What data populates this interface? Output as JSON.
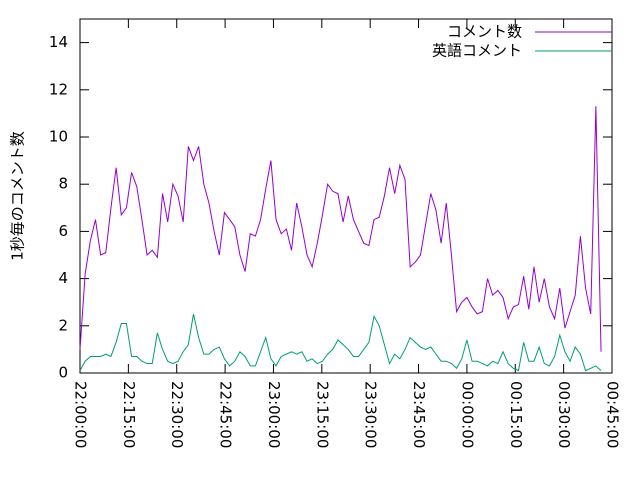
{
  "chart_data": {
    "type": "line",
    "ylabel": "1秒毎のコメント数",
    "x": [
      "22:00:00",
      "22:01:36",
      "22:03:12",
      "22:04:48",
      "22:06:24",
      "22:08:00",
      "22:09:36",
      "22:11:12",
      "22:12:48",
      "22:14:24",
      "22:16:00",
      "22:17:36",
      "22:19:12",
      "22:20:48",
      "22:22:24",
      "22:24:00",
      "22:25:36",
      "22:27:12",
      "22:28:48",
      "22:30:24",
      "22:32:00",
      "22:33:36",
      "22:35:12",
      "22:36:48",
      "22:38:24",
      "22:40:00",
      "22:41:36",
      "22:43:12",
      "22:44:48",
      "22:46:24",
      "22:48:00",
      "22:49:36",
      "22:51:12",
      "22:52:48",
      "22:54:24",
      "22:56:00",
      "22:57:36",
      "22:59:12",
      "23:00:48",
      "23:02:24",
      "23:04:00",
      "23:05:36",
      "23:07:12",
      "23:08:48",
      "23:10:24",
      "23:12:00",
      "23:13:36",
      "23:15:12",
      "23:16:48",
      "23:18:24",
      "23:20:00",
      "23:21:36",
      "23:23:12",
      "23:24:48",
      "23:26:24",
      "23:28:00",
      "23:29:36",
      "23:31:12",
      "23:32:48",
      "23:34:24",
      "23:36:00",
      "23:37:36",
      "23:39:12",
      "23:40:48",
      "23:42:24",
      "23:44:00",
      "23:45:36",
      "23:47:12",
      "23:48:48",
      "23:50:24",
      "23:52:00",
      "23:53:36",
      "23:55:12",
      "23:56:48",
      "23:58:24",
      "00:00:00",
      "00:01:36",
      "00:03:12",
      "00:04:48",
      "00:06:24",
      "00:08:00",
      "00:09:36",
      "00:11:12",
      "00:12:48",
      "00:14:24",
      "00:16:00",
      "00:17:36",
      "00:19:12",
      "00:20:48",
      "00:22:24",
      "00:24:00",
      "00:25:36",
      "00:27:12",
      "00:28:48",
      "00:30:24",
      "00:32:00",
      "00:33:36",
      "00:35:12",
      "00:36:48",
      "00:38:24",
      "00:40:00",
      "00:41:36"
    ],
    "series": [
      {
        "name": "コメント数",
        "color": "#9400d3",
        "values": [
          1.0,
          4.2,
          5.6,
          6.5,
          5.0,
          5.1,
          7.0,
          8.7,
          6.7,
          7.0,
          8.5,
          7.9,
          6.5,
          5.0,
          5.2,
          4.9,
          7.6,
          6.4,
          8.0,
          7.5,
          6.4,
          9.6,
          9.0,
          9.6,
          8.0,
          7.2,
          6.0,
          5.0,
          6.8,
          6.5,
          6.2,
          5.0,
          4.3,
          5.9,
          5.8,
          6.5,
          7.8,
          9.0,
          6.5,
          5.9,
          6.1,
          5.2,
          7.2,
          6.2,
          5.0,
          4.5,
          5.5,
          6.7,
          8.0,
          7.7,
          7.6,
          6.4,
          7.5,
          6.5,
          6.0,
          5.5,
          5.4,
          6.5,
          6.6,
          7.5,
          8.7,
          7.6,
          8.8,
          8.2,
          4.5,
          4.7,
          5.0,
          6.3,
          7.6,
          6.9,
          5.5,
          7.2,
          5.0,
          2.6,
          3.0,
          3.2,
          2.8,
          2.5,
          2.6,
          4.0,
          3.3,
          3.5,
          3.2,
          2.3,
          2.8,
          2.9,
          4.1,
          2.7,
          4.5,
          3.0,
          4.0,
          2.8,
          2.3,
          3.6,
          1.9,
          2.6,
          3.3,
          5.8,
          3.6,
          2.5,
          11.3,
          0.9
        ]
      },
      {
        "name": "英語コメント",
        "color": "#009e73",
        "values": [
          0.1,
          0.5,
          0.7,
          0.7,
          0.7,
          0.8,
          0.7,
          1.3,
          2.1,
          2.1,
          0.7,
          0.7,
          0.5,
          0.4,
          0.4,
          1.7,
          1.0,
          0.5,
          0.4,
          0.5,
          0.9,
          1.2,
          2.5,
          1.5,
          0.8,
          0.8,
          1.0,
          1.1,
          0.6,
          0.3,
          0.5,
          0.9,
          0.7,
          0.3,
          0.3,
          0.9,
          1.5,
          0.6,
          0.3,
          0.7,
          0.8,
          0.9,
          0.8,
          0.9,
          0.5,
          0.6,
          0.4,
          0.5,
          0.8,
          1.0,
          1.4,
          1.2,
          1.0,
          0.7,
          0.7,
          1.0,
          1.3,
          2.4,
          2.0,
          1.2,
          0.4,
          0.8,
          0.6,
          1.0,
          1.5,
          1.3,
          1.1,
          1.0,
          1.1,
          0.8,
          0.5,
          0.5,
          0.4,
          0.2,
          0.6,
          1.4,
          0.5,
          0.5,
          0.4,
          0.3,
          0.5,
          0.4,
          0.9,
          0.4,
          0.2,
          0.1,
          1.3,
          0.5,
          0.5,
          1.1,
          0.4,
          0.3,
          0.7,
          1.6,
          0.9,
          0.5,
          1.1,
          0.8,
          0.1,
          0.2,
          0.3,
          0.1
        ]
      }
    ],
    "xlim": [
      "22:00:00",
      "00:45:00"
    ],
    "xticks": [
      "22:00:00",
      "22:15:00",
      "22:30:00",
      "22:45:00",
      "23:00:00",
      "23:15:00",
      "23:30:00",
      "23:45:00",
      "00:00:00",
      "00:15:00",
      "00:30:00",
      "00:45:00"
    ],
    "ylim": [
      0,
      15
    ],
    "yticks": [
      0,
      2,
      4,
      6,
      8,
      10,
      12,
      14
    ],
    "legend": "top-right"
  }
}
